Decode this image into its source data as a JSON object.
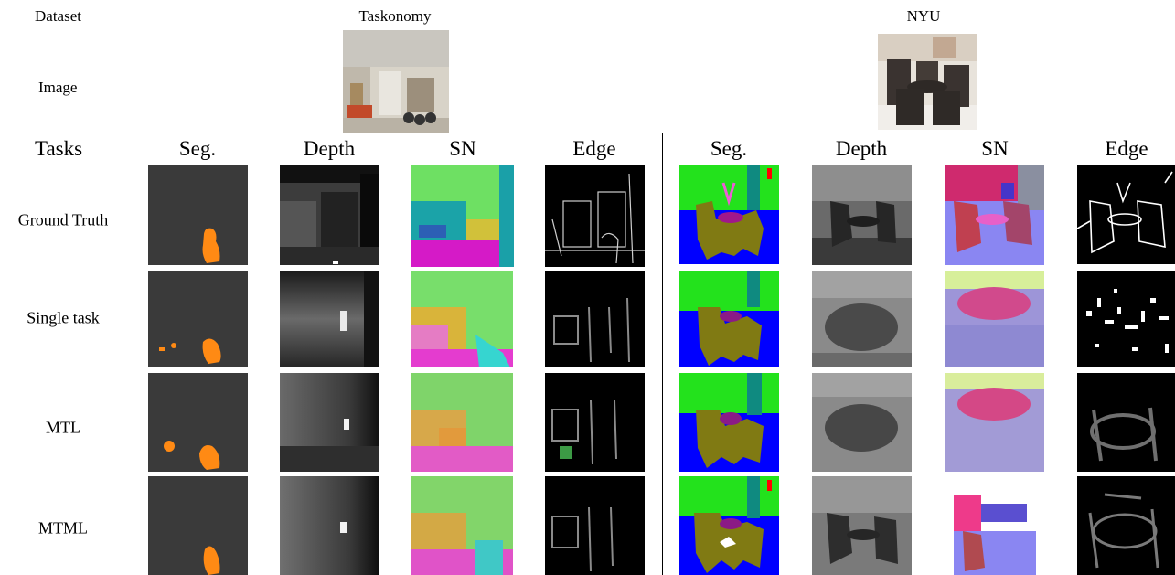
{
  "header": {
    "dataset_label": "Dataset",
    "image_label": "Image",
    "tasks_label": "Tasks",
    "dataset_left": "Taskonomy",
    "dataset_right": "NYU"
  },
  "columns": {
    "left": [
      "Seg.",
      "Depth",
      "SN",
      "Edge"
    ],
    "right": [
      "Seg.",
      "Depth",
      "SN",
      "Edge"
    ]
  },
  "rows": [
    "Ground Truth",
    "Single task",
    "MTL",
    "MTML"
  ]
}
